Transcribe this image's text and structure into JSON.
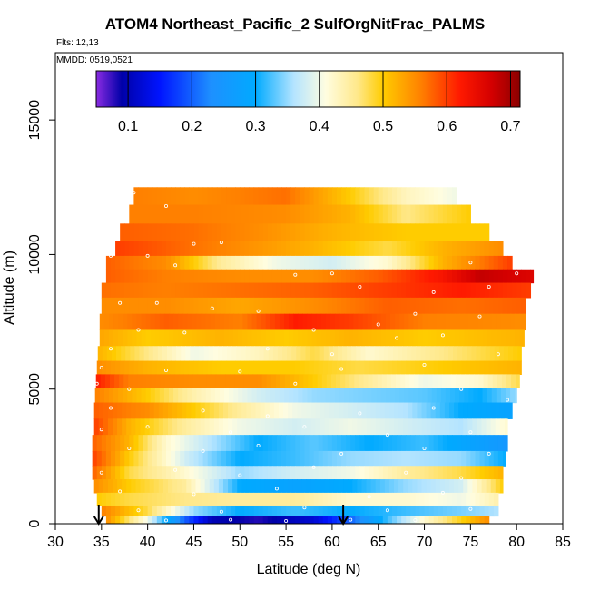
{
  "header": {
    "title": "ATOM4 Northeast_Pacific_2 SulfOrgNitFrac_PALMS",
    "flights": "Flts: 12,13",
    "dates": "MMDD: 0519,0521"
  },
  "colorbar": {
    "ticks": [
      "0.1",
      "0.2",
      "0.3",
      "0.4",
      "0.5",
      "0.6",
      "0.7"
    ],
    "tick_values": [
      0.1,
      0.2,
      0.3,
      0.4,
      0.5,
      0.6,
      0.7
    ],
    "range": [
      0.05,
      0.715
    ],
    "stops": [
      {
        "v": 0.05,
        "c": "#8a2be2"
      },
      {
        "v": 0.09,
        "c": "#0000a8"
      },
      {
        "v": 0.15,
        "c": "#0014ff"
      },
      {
        "v": 0.23,
        "c": "#1e90ff"
      },
      {
        "v": 0.3,
        "c": "#00aaff"
      },
      {
        "v": 0.36,
        "c": "#b4e4ff"
      },
      {
        "v": 0.41,
        "c": "#fffde0"
      },
      {
        "v": 0.46,
        "c": "#ffe88a"
      },
      {
        "v": 0.5,
        "c": "#ffcc00"
      },
      {
        "v": 0.56,
        "c": "#ff8000"
      },
      {
        "v": 0.62,
        "c": "#ff1a00"
      },
      {
        "v": 0.67,
        "c": "#d40000"
      },
      {
        "v": 0.715,
        "c": "#8b0000"
      }
    ]
  },
  "chart_data": {
    "type": "heatmap",
    "title": "ATOM4 Northeast_Pacific_2 SulfOrgNitFrac_PALMS",
    "xlabel": "Latitude (deg N)",
    "ylabel": "Altitude (m)",
    "xlim": [
      30,
      85
    ],
    "ylim": [
      0,
      17500
    ],
    "x_ticks": [
      30,
      35,
      40,
      45,
      50,
      55,
      60,
      65,
      70,
      75,
      80,
      85
    ],
    "y_ticks": [
      0,
      5000,
      10000,
      15000
    ],
    "grid": false,
    "legend": "colorbar top, inside plot",
    "value_range": [
      0.05,
      0.715
    ],
    "arrows_at_latitude": [
      34.7,
      61.2
    ],
    "altitude_bands": [
      {
        "alt": 12200,
        "lat_from": 38.5,
        "lat_to": 73.5,
        "knots": [
          [
            38.5,
            0.56
          ],
          [
            45,
            0.55
          ],
          [
            55,
            0.57
          ],
          [
            62,
            0.5
          ],
          [
            68,
            0.43
          ],
          [
            73.5,
            0.4
          ]
        ]
      },
      {
        "alt": 11500,
        "lat_from": 38.0,
        "lat_to": 75.0,
        "knots": [
          [
            38,
            0.56
          ],
          [
            45,
            0.56
          ],
          [
            55,
            0.55
          ],
          [
            62,
            0.52
          ],
          [
            68,
            0.46
          ],
          [
            75,
            0.5
          ]
        ]
      },
      {
        "alt": 10800,
        "lat_from": 37.0,
        "lat_to": 77.0,
        "knots": [
          [
            37,
            0.58
          ],
          [
            45,
            0.57
          ],
          [
            52,
            0.55
          ],
          [
            60,
            0.52
          ],
          [
            68,
            0.5
          ],
          [
            77,
            0.5
          ]
        ]
      },
      {
        "alt": 10200,
        "lat_from": 36.5,
        "lat_to": 78.5,
        "knots": [
          [
            36.5,
            0.6
          ],
          [
            42,
            0.58
          ],
          [
            50,
            0.55
          ],
          [
            58,
            0.52
          ],
          [
            66,
            0.48
          ],
          [
            72,
            0.52
          ],
          [
            78.5,
            0.55
          ]
        ]
      },
      {
        "alt": 9700,
        "lat_from": 35.5,
        "lat_to": 79.5,
        "knots": [
          [
            35.5,
            0.58
          ],
          [
            42,
            0.55
          ],
          [
            48,
            0.45
          ],
          [
            54,
            0.4
          ],
          [
            60,
            0.38
          ],
          [
            66,
            0.42
          ],
          [
            72,
            0.52
          ],
          [
            79.5,
            0.6
          ]
        ]
      },
      {
        "alt": 9200,
        "lat_from": 35.5,
        "lat_to": 81.8,
        "knots": [
          [
            35.5,
            0.58
          ],
          [
            42,
            0.56
          ],
          [
            50,
            0.55
          ],
          [
            58,
            0.55
          ],
          [
            65,
            0.58
          ],
          [
            72,
            0.63
          ],
          [
            76,
            0.68
          ],
          [
            81.8,
            0.66
          ]
        ]
      },
      {
        "alt": 8700,
        "lat_from": 35.0,
        "lat_to": 81.5,
        "knots": [
          [
            35,
            0.57
          ],
          [
            42,
            0.56
          ],
          [
            50,
            0.57
          ],
          [
            58,
            0.58
          ],
          [
            66,
            0.6
          ],
          [
            74,
            0.62
          ],
          [
            81.5,
            0.6
          ]
        ]
      },
      {
        "alt": 8100,
        "lat_from": 35.0,
        "lat_to": 81.0,
        "knots": [
          [
            35,
            0.55
          ],
          [
            42,
            0.55
          ],
          [
            50,
            0.53
          ],
          [
            58,
            0.55
          ],
          [
            66,
            0.58
          ],
          [
            74,
            0.57
          ],
          [
            81,
            0.58
          ]
        ]
      },
      {
        "alt": 7500,
        "lat_from": 34.8,
        "lat_to": 81.0,
        "knots": [
          [
            34.8,
            0.55
          ],
          [
            42,
            0.58
          ],
          [
            50,
            0.56
          ],
          [
            56,
            0.62
          ],
          [
            62,
            0.6
          ],
          [
            70,
            0.56
          ],
          [
            81,
            0.55
          ]
        ]
      },
      {
        "alt": 6900,
        "lat_from": 34.8,
        "lat_to": 80.8,
        "knots": [
          [
            34.8,
            0.53
          ],
          [
            40,
            0.5
          ],
          [
            48,
            0.52
          ],
          [
            55,
            0.5
          ],
          [
            62,
            0.52
          ],
          [
            70,
            0.5
          ],
          [
            80.8,
            0.52
          ]
        ]
      },
      {
        "alt": 6300,
        "lat_from": 34.6,
        "lat_to": 80.5,
        "knots": [
          [
            34.6,
            0.52
          ],
          [
            40,
            0.46
          ],
          [
            45,
            0.4
          ],
          [
            52,
            0.43
          ],
          [
            58,
            0.48
          ],
          [
            64,
            0.42
          ],
          [
            70,
            0.45
          ],
          [
            80.5,
            0.5
          ]
        ]
      },
      {
        "alt": 5800,
        "lat_from": 34.5,
        "lat_to": 80.5,
        "knots": [
          [
            34.5,
            0.55
          ],
          [
            40,
            0.52
          ],
          [
            48,
            0.5
          ],
          [
            56,
            0.5
          ],
          [
            63,
            0.48
          ],
          [
            72,
            0.5
          ],
          [
            80.5,
            0.52
          ]
        ]
      },
      {
        "alt": 5300,
        "lat_from": 34.4,
        "lat_to": 80.3,
        "knots": [
          [
            34.4,
            0.62
          ],
          [
            38,
            0.56
          ],
          [
            45,
            0.55
          ],
          [
            52,
            0.55
          ],
          [
            58,
            0.5
          ],
          [
            64,
            0.45
          ],
          [
            70,
            0.4
          ],
          [
            76,
            0.42
          ],
          [
            80.3,
            0.48
          ]
        ]
      },
      {
        "alt": 4800,
        "lat_from": 34.3,
        "lat_to": 80.0,
        "knots": [
          [
            34.3,
            0.56
          ],
          [
            40,
            0.5
          ],
          [
            45,
            0.44
          ],
          [
            52,
            0.38
          ],
          [
            58,
            0.35
          ],
          [
            64,
            0.34
          ],
          [
            70,
            0.33
          ],
          [
            76,
            0.3
          ],
          [
            80,
            0.35
          ]
        ]
      },
      {
        "alt": 4200,
        "lat_from": 34.2,
        "lat_to": 79.5,
        "knots": [
          [
            34.2,
            0.58
          ],
          [
            40,
            0.55
          ],
          [
            45,
            0.5
          ],
          [
            50,
            0.45
          ],
          [
            56,
            0.4
          ],
          [
            62,
            0.38
          ],
          [
            68,
            0.36
          ],
          [
            74,
            0.3
          ],
          [
            79.5,
            0.28
          ]
        ]
      },
      {
        "alt": 3600,
        "lat_from": 34.2,
        "lat_to": 79.0,
        "knots": [
          [
            34.2,
            0.6
          ],
          [
            38,
            0.52
          ],
          [
            44,
            0.45
          ],
          [
            50,
            0.4
          ],
          [
            56,
            0.38
          ],
          [
            62,
            0.4
          ],
          [
            68,
            0.38
          ],
          [
            74,
            0.36
          ],
          [
            79,
            0.42
          ]
        ]
      },
      {
        "alt": 3000,
        "lat_from": 34.0,
        "lat_to": 79.0,
        "knots": [
          [
            34,
            0.58
          ],
          [
            38,
            0.52
          ],
          [
            42,
            0.42
          ],
          [
            47,
            0.36
          ],
          [
            52,
            0.3
          ],
          [
            58,
            0.33
          ],
          [
            64,
            0.3
          ],
          [
            70,
            0.32
          ],
          [
            79,
            0.25
          ]
        ]
      },
      {
        "alt": 2400,
        "lat_from": 34.0,
        "lat_to": 78.8,
        "knots": [
          [
            34,
            0.6
          ],
          [
            38,
            0.5
          ],
          [
            44,
            0.38
          ],
          [
            50,
            0.3
          ],
          [
            56,
            0.32
          ],
          [
            62,
            0.35
          ],
          [
            68,
            0.36
          ],
          [
            74,
            0.35
          ],
          [
            78.8,
            0.3
          ]
        ]
      },
      {
        "alt": 1900,
        "lat_from": 34.0,
        "lat_to": 78.5,
        "knots": [
          [
            34,
            0.58
          ],
          [
            38,
            0.48
          ],
          [
            44,
            0.42
          ],
          [
            50,
            0.35
          ],
          [
            56,
            0.38
          ],
          [
            62,
            0.4
          ],
          [
            68,
            0.45
          ],
          [
            74,
            0.48
          ],
          [
            78.5,
            0.52
          ]
        ]
      },
      {
        "alt": 1400,
        "lat_from": 34.2,
        "lat_to": 78.5,
        "knots": [
          [
            34.2,
            0.55
          ],
          [
            38,
            0.5
          ],
          [
            44,
            0.45
          ],
          [
            50,
            0.3
          ],
          [
            56,
            0.28
          ],
          [
            62,
            0.3
          ],
          [
            68,
            0.35
          ],
          [
            74,
            0.38
          ],
          [
            78.5,
            0.5
          ]
        ]
      },
      {
        "alt": 900,
        "lat_from": 34.5,
        "lat_to": 78.0,
        "knots": [
          [
            34.5,
            0.5
          ],
          [
            38,
            0.48
          ],
          [
            44,
            0.46
          ],
          [
            50,
            0.45
          ],
          [
            56,
            0.45
          ],
          [
            62,
            0.42
          ],
          [
            68,
            0.42
          ],
          [
            74,
            0.4
          ],
          [
            78,
            0.44
          ]
        ]
      },
      {
        "alt": 450,
        "lat_from": 35.0,
        "lat_to": 78.0,
        "knots": [
          [
            35,
            0.56
          ],
          [
            40,
            0.48
          ],
          [
            45,
            0.35
          ],
          [
            50,
            0.3
          ],
          [
            56,
            0.32
          ],
          [
            62,
            0.3
          ],
          [
            68,
            0.32
          ],
          [
            74,
            0.34
          ],
          [
            78,
            0.36
          ]
        ]
      },
      {
        "alt": 120,
        "lat_from": 35.5,
        "lat_to": 77.0,
        "knots": [
          [
            35.5,
            0.55
          ],
          [
            40,
            0.4
          ],
          [
            44,
            0.2
          ],
          [
            47,
            0.1
          ],
          [
            52,
            0.08
          ],
          [
            58,
            0.12
          ],
          [
            62,
            0.2
          ],
          [
            66,
            0.32
          ],
          [
            70,
            0.42
          ],
          [
            77,
            0.55
          ]
        ]
      }
    ],
    "sample_points": [
      [
        38.5,
        12300
      ],
      [
        42,
        11800
      ],
      [
        45,
        10400
      ],
      [
        48,
        10450
      ],
      [
        36,
        9950
      ],
      [
        40,
        9950
      ],
      [
        43,
        9600
      ],
      [
        75,
        9700
      ],
      [
        80,
        9300
      ],
      [
        56,
        9250
      ],
      [
        60,
        9300
      ],
      [
        63,
        8800
      ],
      [
        77,
        8800
      ],
      [
        71,
        8600
      ],
      [
        37,
        8200
      ],
      [
        41,
        8200
      ],
      [
        47,
        8000
      ],
      [
        52,
        7900
      ],
      [
        69,
        7800
      ],
      [
        76,
        7700
      ],
      [
        39,
        7200
      ],
      [
        44,
        7100
      ],
      [
        58,
        7200
      ],
      [
        65,
        7400
      ],
      [
        72,
        7000
      ],
      [
        36,
        6500
      ],
      [
        53,
        6500
      ],
      [
        60,
        6300
      ],
      [
        67,
        6900
      ],
      [
        78,
        6300
      ],
      [
        35,
        5800
      ],
      [
        42,
        5700
      ],
      [
        50,
        5650
      ],
      [
        61,
        5750
      ],
      [
        70,
        5900
      ],
      [
        34.5,
        5200
      ],
      [
        38,
        5000
      ],
      [
        56,
        5200
      ],
      [
        74,
        5000
      ],
      [
        79,
        4600
      ],
      [
        36,
        4300
      ],
      [
        46,
        4200
      ],
      [
        53,
        4000
      ],
      [
        63,
        4100
      ],
      [
        71,
        4300
      ],
      [
        35,
        3500
      ],
      [
        40,
        3600
      ],
      [
        49,
        3400
      ],
      [
        57,
        3600
      ],
      [
        66,
        3300
      ],
      [
        75,
        3400
      ],
      [
        38,
        2800
      ],
      [
        46,
        2700
      ],
      [
        52,
        2900
      ],
      [
        61,
        2600
      ],
      [
        70,
        2800
      ],
      [
        77,
        2600
      ],
      [
        35,
        1900
      ],
      [
        43,
        2000
      ],
      [
        50,
        1800
      ],
      [
        58,
        2100
      ],
      [
        68,
        1900
      ],
      [
        74,
        1700
      ],
      [
        37,
        1200
      ],
      [
        45,
        1100
      ],
      [
        54,
        1300
      ],
      [
        64,
        1000
      ],
      [
        72,
        1150
      ],
      [
        39,
        500
      ],
      [
        48,
        450
      ],
      [
        57,
        600
      ],
      [
        66,
        500
      ],
      [
        75,
        550
      ],
      [
        42,
        120
      ],
      [
        49,
        150
      ],
      [
        55,
        100
      ],
      [
        62,
        150
      ],
      [
        69,
        130
      ]
    ]
  }
}
